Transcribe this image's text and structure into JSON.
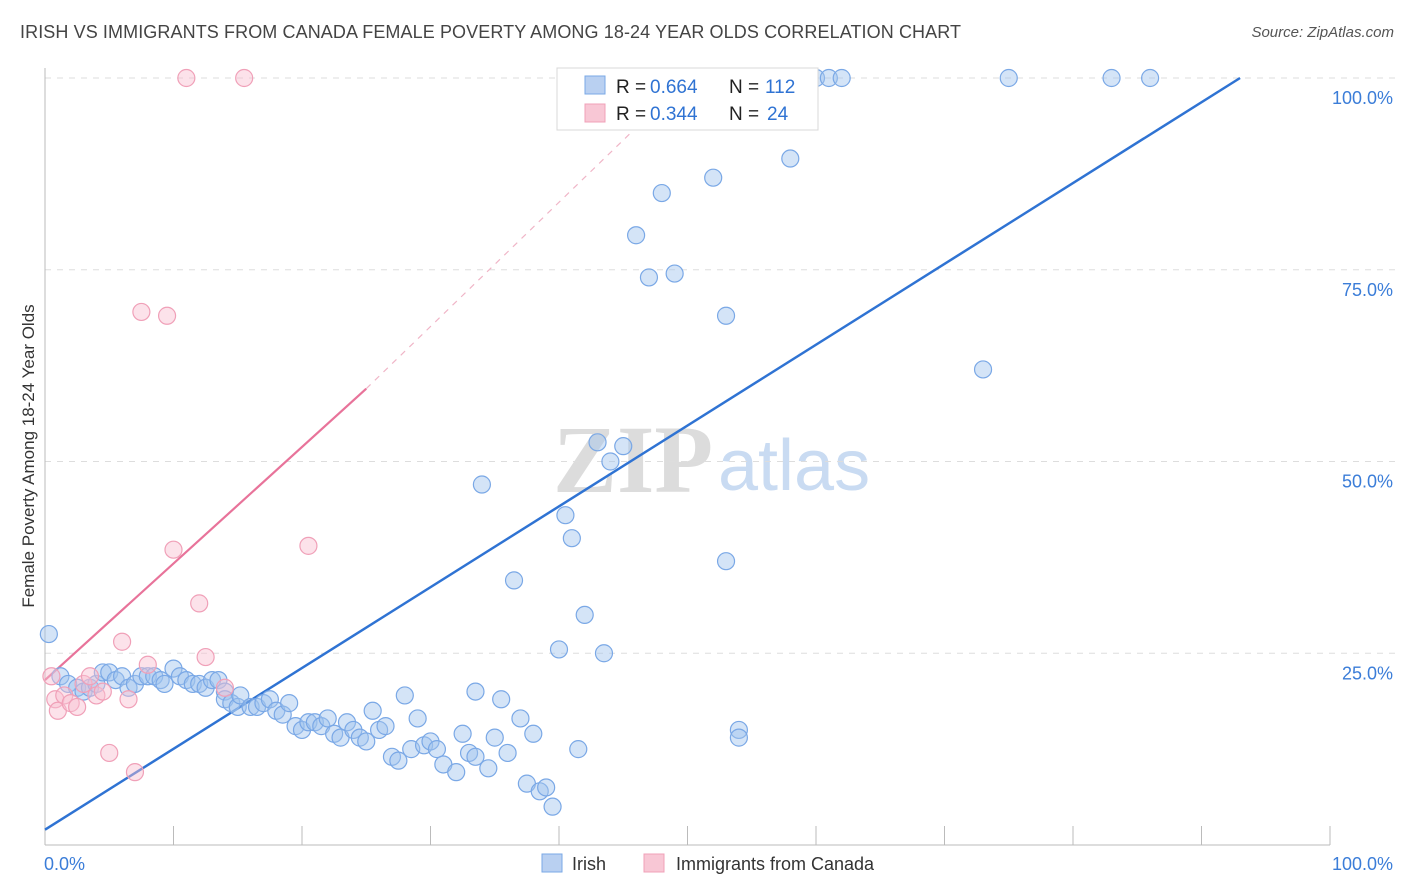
{
  "title": "IRISH VS IMMIGRANTS FROM CANADA FEMALE POVERTY AMONG 18-24 YEAR OLDS CORRELATION CHART",
  "source": "Source: ZipAtlas.com",
  "watermark": {
    "zip": "ZIP",
    "atlas": "atlas"
  },
  "colors": {
    "irish": "#7aa8e6",
    "canada": "#f0a0b8",
    "irish_line": "#2f73d3",
    "canada_line": "#e8739a",
    "tick": "#3b7dd8"
  },
  "chart_data": {
    "type": "scatter",
    "xlabel": "",
    "ylabel": "Female Poverty Among 18-24 Year Olds",
    "xlim": [
      0,
      100
    ],
    "ylim": [
      0,
      100
    ],
    "x_tick_labels": [
      "0.0%",
      "100.0%"
    ],
    "y_ticks": [
      25,
      50,
      75,
      100
    ],
    "y_tick_labels": [
      "25.0%",
      "50.0%",
      "75.0%",
      "100.0%"
    ],
    "legend": [
      {
        "name": "Irish",
        "r_label": "R =",
        "r": "0.664",
        "n_label": "N =",
        "n": "112"
      },
      {
        "name": "Immigrants from Canada",
        "r_label": "R =",
        "r": "0.344",
        "n_label": "N =",
        "n": "24"
      }
    ],
    "series": [
      {
        "name": "Irish",
        "trend": {
          "x0": 0,
          "y0": 2,
          "x1": 93,
          "y1": 100
        },
        "points": [
          [
            0.3,
            27.5
          ],
          [
            1.2,
            22
          ],
          [
            1.8,
            21
          ],
          [
            2.5,
            20.5
          ],
          [
            3,
            20
          ],
          [
            3.5,
            20.5
          ],
          [
            4,
            21
          ],
          [
            4.5,
            22.5
          ],
          [
            5,
            22.5
          ],
          [
            5.5,
            21.5
          ],
          [
            6,
            22
          ],
          [
            6.5,
            20.5
          ],
          [
            7,
            21
          ],
          [
            7.5,
            22
          ],
          [
            8,
            22
          ],
          [
            8.5,
            22
          ],
          [
            9,
            21.5
          ],
          [
            9.3,
            21
          ],
          [
            10,
            23
          ],
          [
            10.5,
            22
          ],
          [
            11,
            21.5
          ],
          [
            11.5,
            21
          ],
          [
            12,
            21
          ],
          [
            12.5,
            20.5
          ],
          [
            13,
            21.5
          ],
          [
            13.5,
            21.5
          ],
          [
            14,
            20
          ],
          [
            14,
            19
          ],
          [
            14.5,
            18.5
          ],
          [
            15,
            18
          ],
          [
            15.2,
            19.5
          ],
          [
            16,
            18
          ],
          [
            16.5,
            18
          ],
          [
            17,
            18.5
          ],
          [
            17.5,
            19
          ],
          [
            18,
            17.5
          ],
          [
            18.5,
            17
          ],
          [
            19,
            18.5
          ],
          [
            19.5,
            15.5
          ],
          [
            20,
            15
          ],
          [
            20.5,
            16
          ],
          [
            21,
            16
          ],
          [
            21.5,
            15.5
          ],
          [
            22,
            16.5
          ],
          [
            22.5,
            14.5
          ],
          [
            23,
            14
          ],
          [
            23.5,
            16
          ],
          [
            24,
            15
          ],
          [
            24.5,
            14
          ],
          [
            25,
            13.5
          ],
          [
            25.5,
            17.5
          ],
          [
            26,
            15
          ],
          [
            26.5,
            15.5
          ],
          [
            27,
            11.5
          ],
          [
            27.5,
            11
          ],
          [
            28,
            19.5
          ],
          [
            28.5,
            12.5
          ],
          [
            29,
            16.5
          ],
          [
            29.5,
            13
          ],
          [
            30,
            13.5
          ],
          [
            30.5,
            12.5
          ],
          [
            31,
            10.5
          ],
          [
            32,
            9.5
          ],
          [
            32.5,
            14.5
          ],
          [
            33,
            12
          ],
          [
            33.5,
            11.5
          ],
          [
            33.5,
            20
          ],
          [
            34,
            47
          ],
          [
            34.5,
            10
          ],
          [
            35,
            14
          ],
          [
            35.5,
            19
          ],
          [
            36,
            12
          ],
          [
            36.5,
            34.5
          ],
          [
            37,
            16.5
          ],
          [
            37.5,
            8
          ],
          [
            38,
            14.5
          ],
          [
            38.5,
            7
          ],
          [
            39,
            7.5
          ],
          [
            39.5,
            5
          ],
          [
            40,
            25.5
          ],
          [
            40.5,
            43
          ],
          [
            41,
            40
          ],
          [
            41.5,
            12.5
          ],
          [
            42,
            30
          ],
          [
            43,
            52.5
          ],
          [
            43.5,
            25
          ],
          [
            44,
            50
          ],
          [
            45,
            52
          ],
          [
            46,
            79.5
          ],
          [
            47,
            74
          ],
          [
            48,
            85
          ],
          [
            49,
            74.5
          ],
          [
            50,
            100
          ],
          [
            52,
            87
          ],
          [
            53,
            37
          ],
          [
            53,
            69
          ],
          [
            54,
            15
          ],
          [
            54,
            14
          ],
          [
            55,
            100
          ],
          [
            58,
            89.5
          ],
          [
            60,
            100
          ],
          [
            61,
            100
          ],
          [
            62,
            100
          ],
          [
            73,
            62
          ],
          [
            75,
            100
          ],
          [
            83,
            100
          ],
          [
            86,
            100
          ]
        ]
      },
      {
        "name": "Immigrants from Canada",
        "trend": {
          "x0": 0,
          "y0": 21.5,
          "x1": 25,
          "y1": 59.5,
          "dash_to_x": 50,
          "dash_to_y": 100
        },
        "points": [
          [
            0.5,
            22
          ],
          [
            0.8,
            19
          ],
          [
            1,
            17.5
          ],
          [
            1.5,
            19.5
          ],
          [
            2,
            18.5
          ],
          [
            2.5,
            18
          ],
          [
            3,
            21
          ],
          [
            3.5,
            22
          ],
          [
            4,
            19.5
          ],
          [
            4.5,
            20
          ],
          [
            5,
            12
          ],
          [
            6,
            26.5
          ],
          [
            6.5,
            19
          ],
          [
            7,
            9.5
          ],
          [
            7.5,
            69.5
          ],
          [
            8,
            23.5
          ],
          [
            9.5,
            69
          ],
          [
            10,
            38.5
          ],
          [
            11,
            100
          ],
          [
            12,
            31.5
          ],
          [
            12.5,
            24.5
          ],
          [
            14,
            20.5
          ],
          [
            15.5,
            100
          ],
          [
            20.5,
            39
          ]
        ]
      }
    ]
  },
  "bottom_legend": [
    "Irish",
    "Immigrants from Canada"
  ]
}
